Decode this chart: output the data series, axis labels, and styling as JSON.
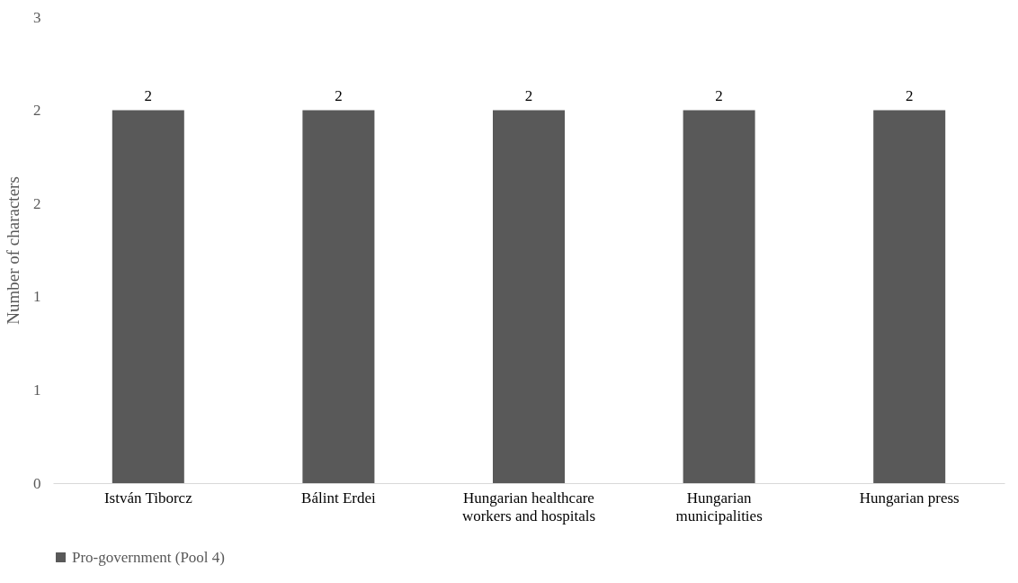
{
  "chart_data": {
    "type": "bar",
    "ylabel": "Number of characters",
    "categories": [
      "István Tiborcz",
      "Bálint Erdei",
      "Hungarian healthcare workers and hospitals",
      "Hungarian municipalities",
      "Hungarian press"
    ],
    "series": [
      {
        "name": "Pro-government (Pool 4)",
        "color": "#595959",
        "values": [
          2,
          2,
          2,
          2,
          2
        ]
      }
    ],
    "ylim": [
      0,
      2.5
    ],
    "yticks": [
      0,
      {
        "value": 0.5,
        "label": "1"
      },
      1,
      {
        "value": 1.5,
        "label": "2"
      },
      2,
      {
        "value": 2.5,
        "label": "3"
      }
    ],
    "data_labels": true,
    "grid": false,
    "legend": "bottom"
  }
}
